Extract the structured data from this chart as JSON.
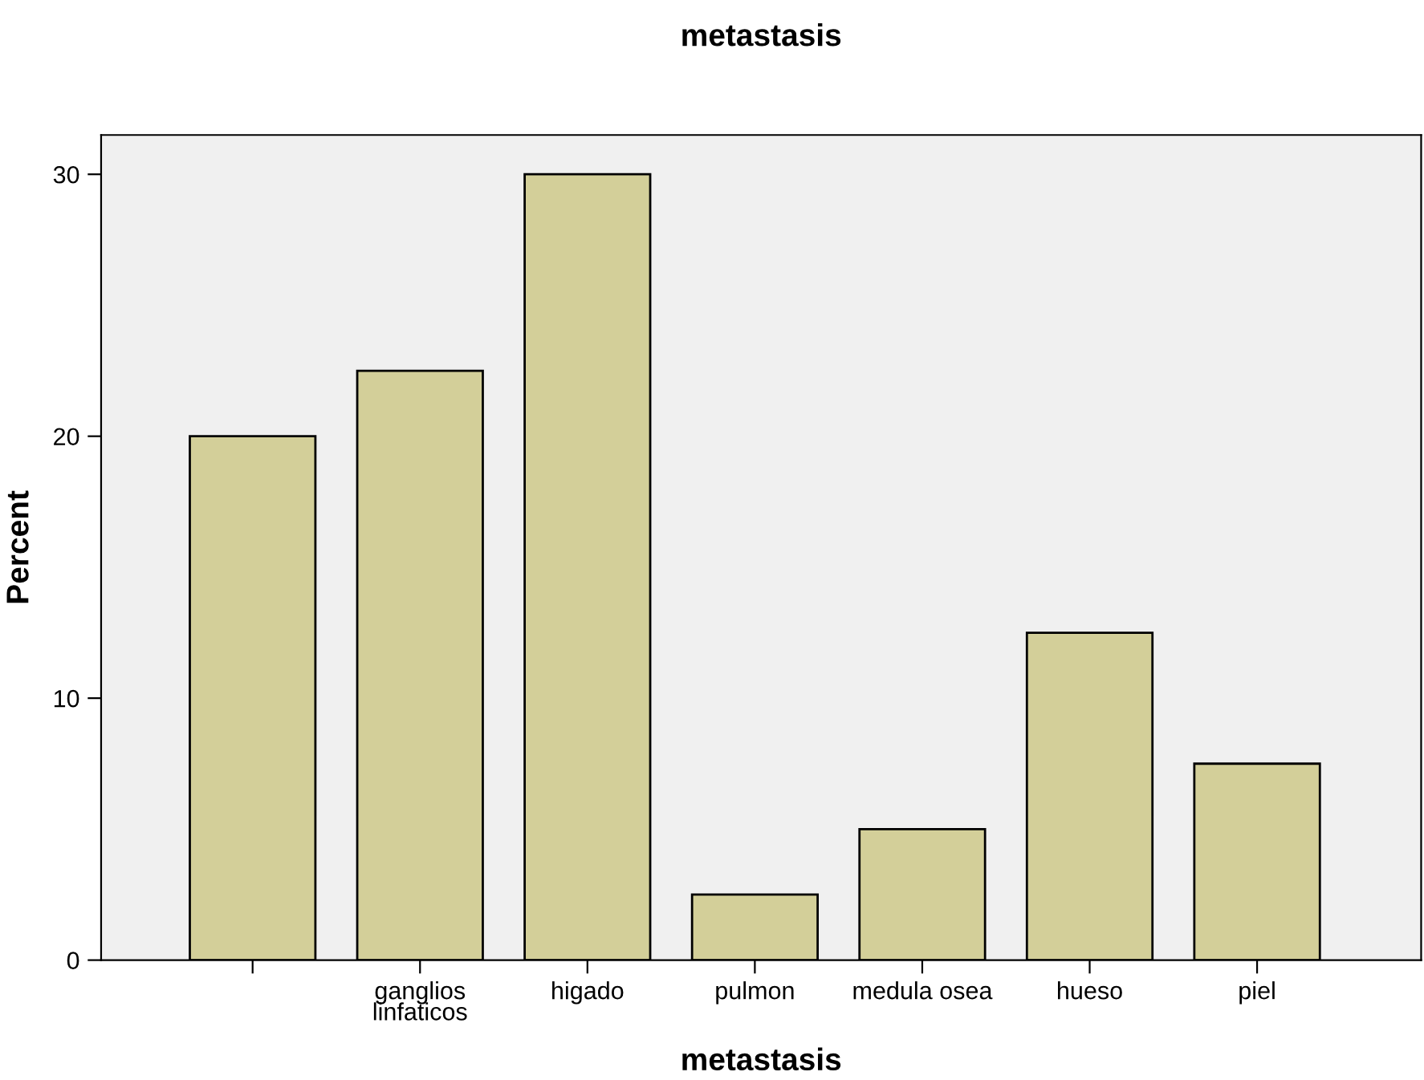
{
  "chart_data": {
    "type": "bar",
    "title": "metastasis",
    "xlabel": "metastasis",
    "ylabel": "Percent",
    "categories": [
      null,
      "ganglios\nlinfaticos",
      "higado",
      "pulmon",
      "medula osea",
      "hueso",
      "piel"
    ],
    "values": [
      20,
      22.5,
      30,
      2.5,
      5,
      12.5,
      7.5
    ],
    "color": "#d3cf99",
    "ylim": [
      0,
      31.5
    ],
    "yticks": [
      0,
      10,
      20,
      30
    ],
    "grid": false,
    "legend": false
  }
}
